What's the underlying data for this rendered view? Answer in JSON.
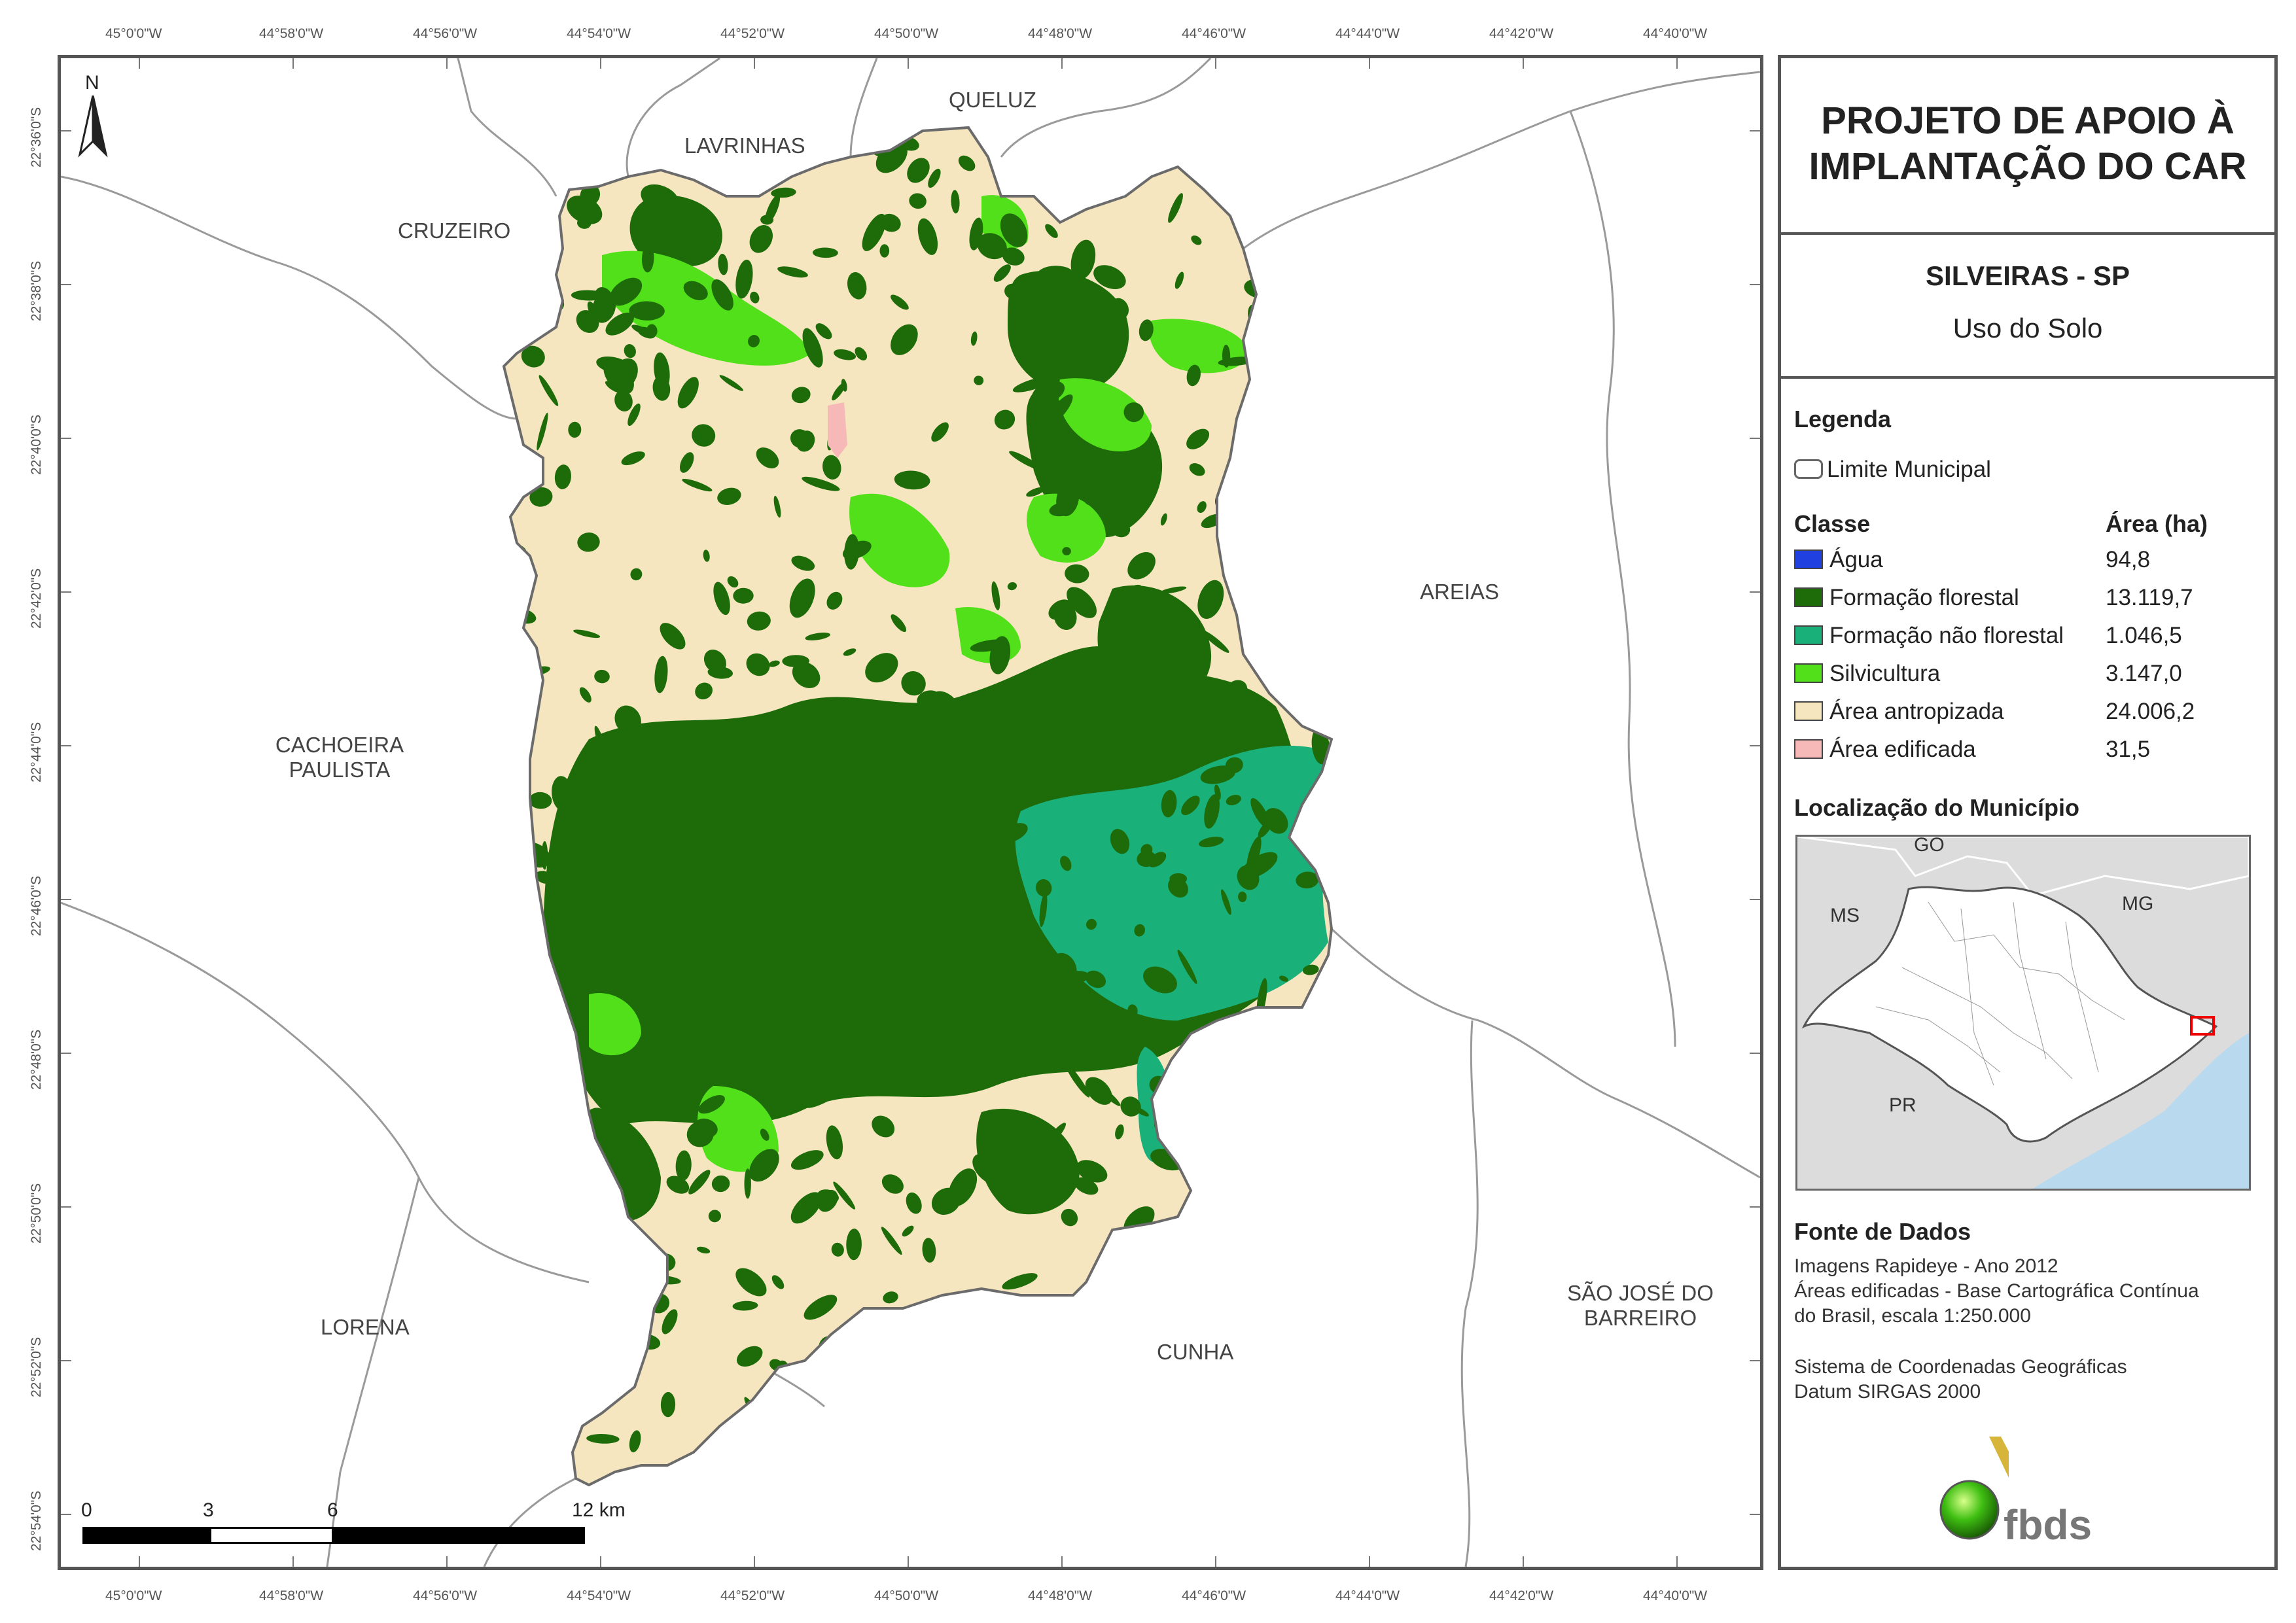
{
  "panel": {
    "title_line1": "PROJETO DE APOIO À",
    "title_line2": "IMPLANTAÇÃO DO CAR",
    "municipality": "SILVEIRAS - SP",
    "subtitle": "Uso do Solo",
    "legend_heading": "Legenda",
    "boundary_label": "Limite Municipal",
    "class_header": "Classe",
    "area_header": "Área (ha)",
    "classes": [
      {
        "label": "Água",
        "area": "94,8",
        "color": "#2040e0"
      },
      {
        "label": "Formação florestal",
        "area": "13.119,7",
        "color": "#1e6b0a"
      },
      {
        "label": "Formação não florestal",
        "area": "1.046,5",
        "color": "#1ab07a"
      },
      {
        "label": "Silvicultura",
        "area": "3.147,0",
        "color": "#52e01a"
      },
      {
        "label": "Área antropizada",
        "area": "24.006,2",
        "color": "#f5e6c0"
      },
      {
        "label": "Área edificada",
        "area": "31,5",
        "color": "#f7b8b8"
      }
    ],
    "location_heading": "Localização do Município",
    "inset_labels": [
      "GO",
      "MS",
      "MG",
      "PR"
    ],
    "source_heading": "Fonte de Dados",
    "source_lines": [
      "Imagens Rapideye - Ano 2012",
      "Áreas edificadas - Base Cartográfica Contínua",
      "do Brasil, escala 1:250.000"
    ],
    "crs_lines": [
      "Sistema de Coordenadas Geográficas",
      "Datum SIRGAS 2000"
    ],
    "logo_text": "fbds"
  },
  "map": {
    "longitudes": [
      "45°0'0\"W",
      "44°58'0\"W",
      "44°56'0\"W",
      "44°54'0\"W",
      "44°52'0\"W",
      "44°50'0\"W",
      "44°48'0\"W",
      "44°46'0\"W",
      "44°44'0\"W",
      "44°42'0\"W",
      "44°40'0\"W"
    ],
    "latitudes": [
      "22°36'0\"S",
      "22°38'0\"S",
      "22°40'0\"S",
      "22°42'0\"S",
      "22°44'0\"S",
      "22°46'0\"S",
      "22°48'0\"S",
      "22°50'0\"S",
      "22°52'0\"S",
      "22°54'0\"S"
    ],
    "neighbors": {
      "queluz": "QUELUZ",
      "lavrinhas": "LAVRINHAS",
      "cruzeiro": "CRUZEIRO",
      "areias": "AREIAS",
      "cachoeira_1": "CACHOEIRA",
      "cachoeira_2": "PAULISTA",
      "lorena": "LORENA",
      "cunha": "CUNHA",
      "sjb_1": "SÃO JOSÉ DO",
      "sjb_2": "BARREIRO"
    },
    "north": "N",
    "scale_labels": [
      "0",
      "3",
      "6",
      "12 km"
    ]
  }
}
